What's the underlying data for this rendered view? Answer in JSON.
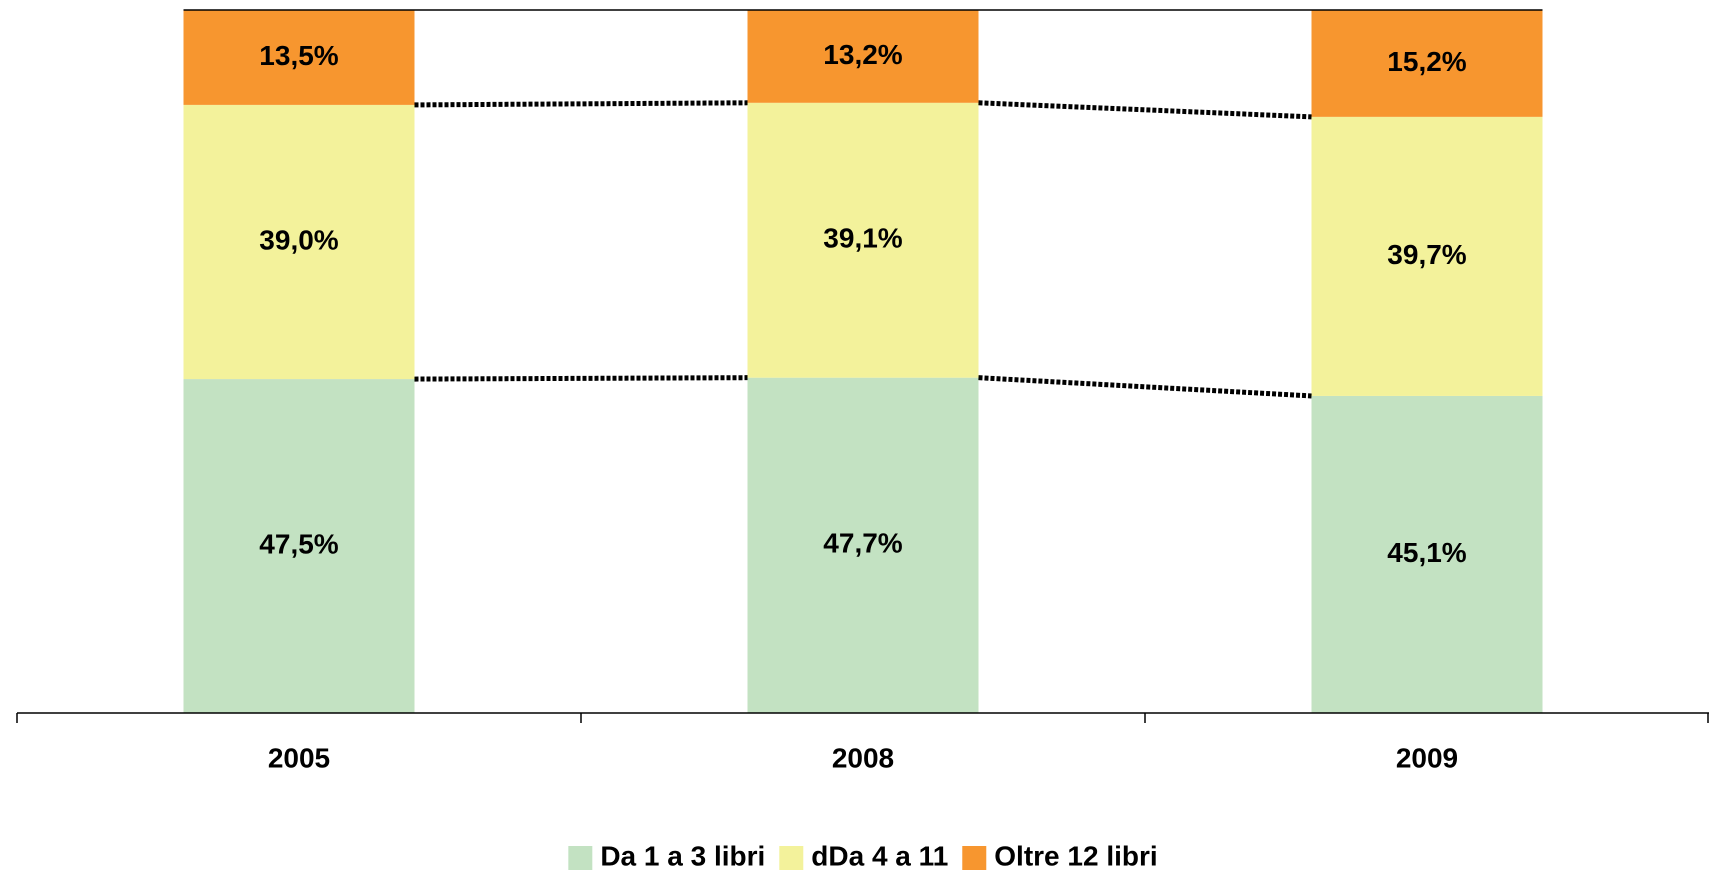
{
  "chart_data": {
    "type": "stacked_bar",
    "categories": [
      "2005",
      "2008",
      "2009"
    ],
    "series": [
      {
        "name": "Da 1 a 3 libri",
        "color": "#c3e2c2",
        "values": [
          47.5,
          47.7,
          45.1
        ],
        "value_labels": [
          "47,5%",
          "47,7%",
          "45,1%"
        ]
      },
      {
        "name": "dDa 4 a 11",
        "color": "#f3f29b",
        "values": [
          39.0,
          39.1,
          39.7
        ],
        "value_labels": [
          "39,0%",
          "39,1%",
          "39,7%"
        ]
      },
      {
        "name": "Oltre 12 libri",
        "color": "#f7962f",
        "values": [
          13.5,
          13.2,
          15.2
        ],
        "value_labels": [
          "13,5%",
          "13,2%",
          "15,2%"
        ]
      }
    ],
    "ylim": [
      0,
      100
    ],
    "legend": "bottom"
  }
}
